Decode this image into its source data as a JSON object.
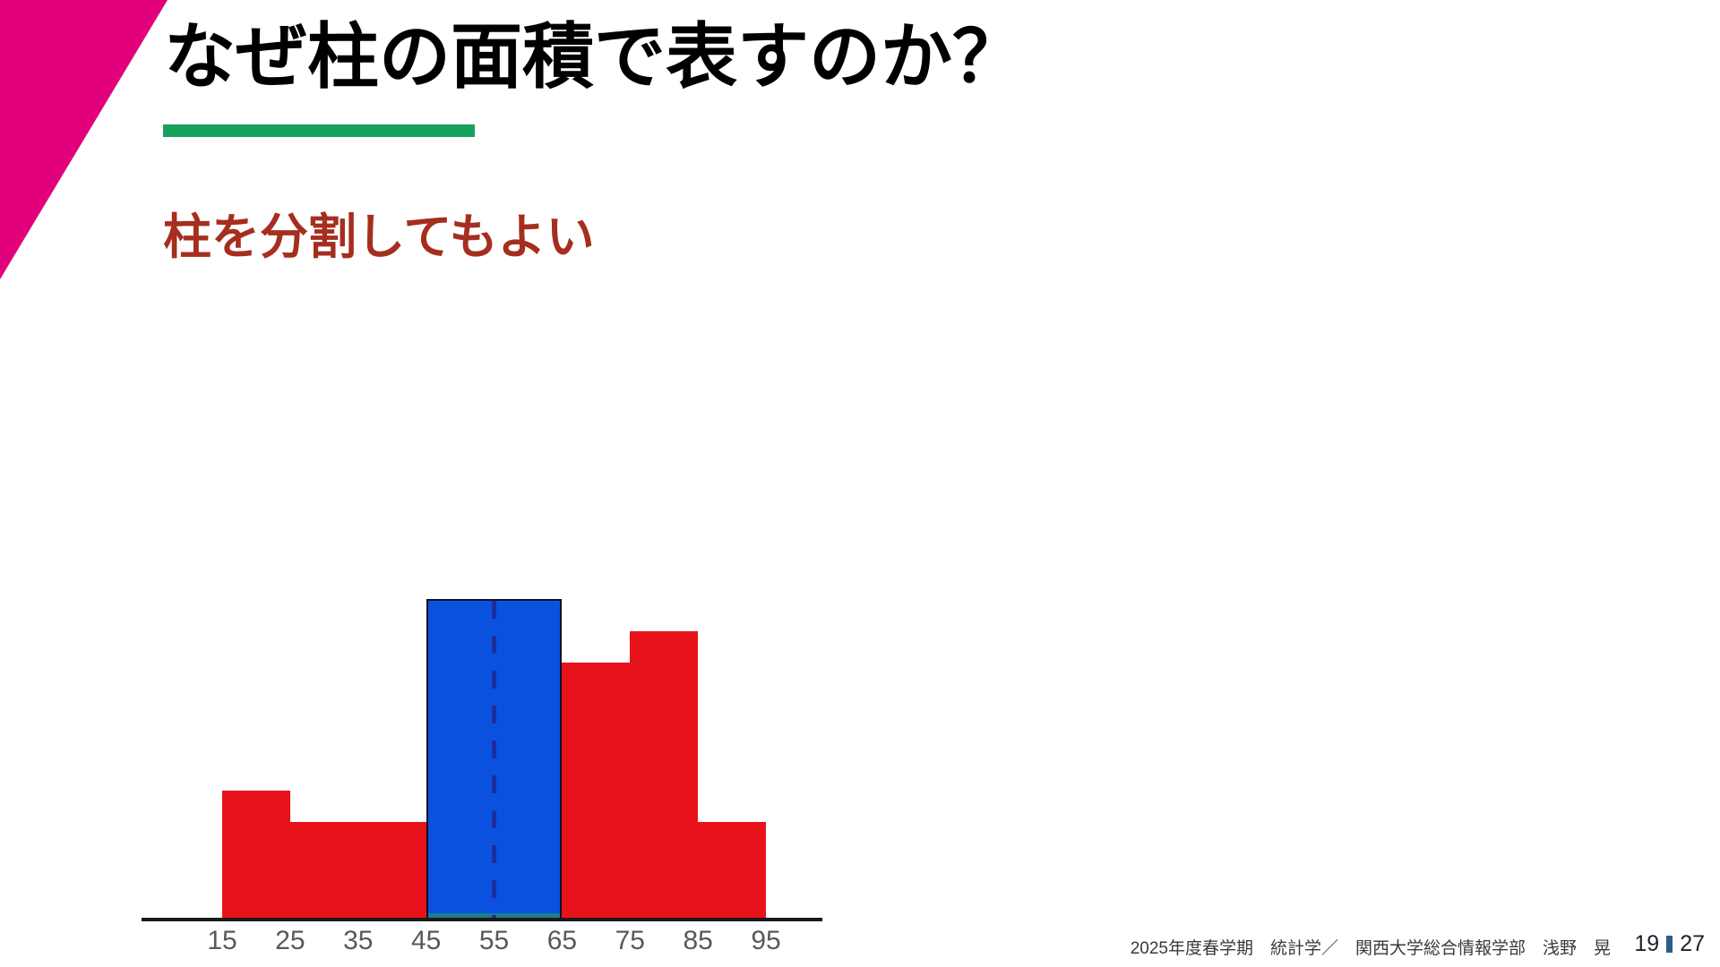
{
  "slide": {
    "title": "なぜ柱の面積で表すのか？",
    "subtitle": "柱を分割してもよい",
    "footer": {
      "course_info": "2025年度春学期　統計学／　関西大学総合情報学部　浅野　晃",
      "page_current": "19",
      "page_total": "27"
    },
    "colors": {
      "accent_triangle_magenta": "#E2007B",
      "title_underline_green": "#17A05A",
      "subtitle_dark_red": "#A52E1E",
      "page_separator_blue": "#2E5C8C"
    }
  },
  "chart_data": {
    "type": "histogram",
    "title": "",
    "xlabel": "",
    "ylabel": "",
    "x_tick_labels": [
      "15",
      "25",
      "35",
      "45",
      "55",
      "65",
      "75",
      "85",
      "95"
    ],
    "x_range": [
      15,
      95
    ],
    "grid": false,
    "y_axis_visible": false,
    "bars": [
      {
        "from": 15,
        "to": 25,
        "height": 4,
        "color": "red"
      },
      {
        "from": 25,
        "to": 35,
        "height": 3,
        "color": "red"
      },
      {
        "from": 35,
        "to": 45,
        "height": 3,
        "color": "red"
      },
      {
        "from": 45,
        "to": 65,
        "height": 10,
        "color": "blue",
        "merged": true,
        "divider_at": 55
      },
      {
        "from": 65,
        "to": 75,
        "height": 8,
        "color": "red"
      },
      {
        "from": 75,
        "to": 85,
        "height": 9,
        "color": "red"
      },
      {
        "from": 85,
        "to": 95,
        "height": 3,
        "color": "red"
      }
    ],
    "colors": {
      "red": "#E8121B",
      "blue": "#0B51DF",
      "blue_border": "#0C1220",
      "divider_dash": "#1B2F9E",
      "blue_base_strip": "#1E7E88",
      "axis": "#1A1A1A",
      "tick_label": "#595959"
    }
  }
}
